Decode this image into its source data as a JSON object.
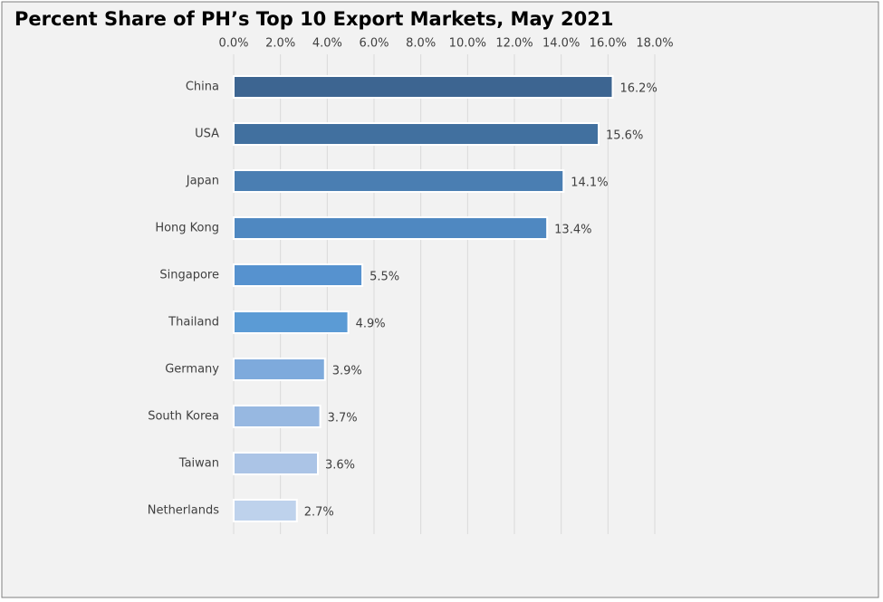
{
  "chart_data": {
    "type": "barh",
    "title": "Percent Share of PH’s Top 10 Export Markets, May 2021",
    "categories": [
      "China",
      "USA",
      "Japan",
      "Hong Kong",
      "Singapore",
      "Thailand",
      "Germany",
      "South Korea",
      "Taiwan",
      "Netherlands"
    ],
    "values": [
      16.2,
      15.6,
      14.1,
      13.4,
      5.5,
      4.9,
      3.9,
      3.7,
      3.6,
      2.7
    ],
    "value_labels": [
      "16.2%",
      "15.6%",
      "14.1%",
      "13.4%",
      "5.5%",
      "4.9%",
      "3.9%",
      "3.7%",
      "3.6%",
      "2.7%"
    ],
    "colors": [
      "#3d6591",
      "#41709f",
      "#4a7eb2",
      "#4f88c1",
      "#5692cf",
      "#5b9bd5",
      "#7eaadc",
      "#97b8e1",
      "#abc4e6",
      "#bed2ec"
    ],
    "xlim": [
      0,
      18
    ],
    "xticks": [
      {
        "value": 0,
        "label": "0.0%"
      },
      {
        "value": 2,
        "label": "2.0%"
      },
      {
        "value": 4,
        "label": "4.0%"
      },
      {
        "value": 6,
        "label": "6.0%"
      },
      {
        "value": 8,
        "label": "8.0%"
      },
      {
        "value": 10,
        "label": "10.0%"
      },
      {
        "value": 12,
        "label": "12.0%"
      },
      {
        "value": 14,
        "label": "14.0%"
      },
      {
        "value": 16,
        "label": "16.0%"
      },
      {
        "value": 18,
        "label": "18.0%"
      }
    ],
    "grid": true
  }
}
